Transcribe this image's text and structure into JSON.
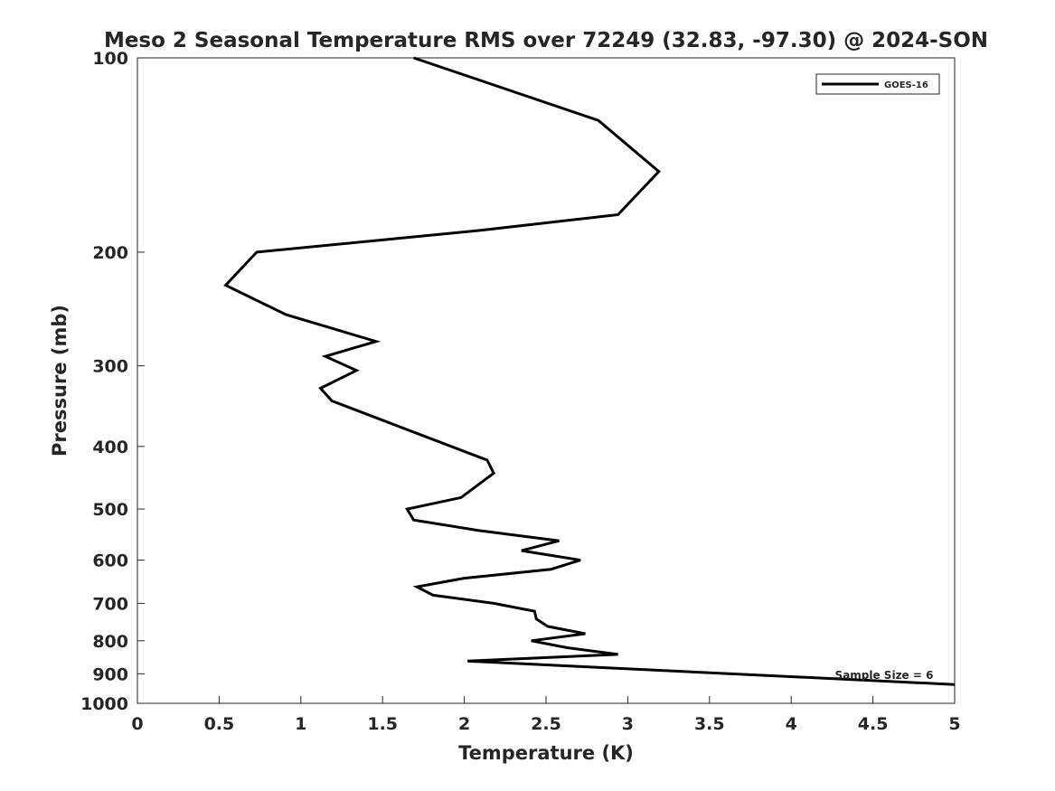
{
  "chart_data": {
    "type": "line",
    "title": "Meso 2 Seasonal Temperature RMS over 72249 (32.83, -97.30) @ 2024-SON",
    "xlabel": "Temperature (K)",
    "ylabel": "Pressure (mb)",
    "xlim": [
      0,
      5
    ],
    "ylim": [
      100,
      1000
    ],
    "y_scale": "log",
    "y_reversed": true,
    "x_ticks": [
      "0",
      "0.5",
      "1",
      "1.5",
      "2",
      "2.5",
      "3",
      "3.5",
      "4",
      "4.5",
      "5"
    ],
    "y_ticks": [
      "100",
      "200",
      "300",
      "400",
      "500",
      "600",
      "700",
      "800",
      "900",
      "1000"
    ],
    "grid": false,
    "legend_position": "top-right",
    "annotation": "Sample Size = 6",
    "series": [
      {
        "name": "GOES-16",
        "color": "#000000",
        "points": [
          {
            "x": 1.69,
            "p": 100
          },
          {
            "x": 2.82,
            "p": 125
          },
          {
            "x": 3.19,
            "p": 150
          },
          {
            "x": 2.94,
            "p": 175
          },
          {
            "x": 2.1,
            "p": 185
          },
          {
            "x": 0.73,
            "p": 200
          },
          {
            "x": 0.54,
            "p": 225
          },
          {
            "x": 0.91,
            "p": 250
          },
          {
            "x": 1.46,
            "p": 275
          },
          {
            "x": 1.15,
            "p": 290
          },
          {
            "x": 1.34,
            "p": 305
          },
          {
            "x": 1.12,
            "p": 325
          },
          {
            "x": 1.19,
            "p": 340
          },
          {
            "x": 2.14,
            "p": 420
          },
          {
            "x": 2.18,
            "p": 440
          },
          {
            "x": 1.98,
            "p": 480
          },
          {
            "x": 1.65,
            "p": 500
          },
          {
            "x": 1.69,
            "p": 520
          },
          {
            "x": 2.09,
            "p": 540
          },
          {
            "x": 2.58,
            "p": 560
          },
          {
            "x": 2.35,
            "p": 580
          },
          {
            "x": 2.71,
            "p": 600
          },
          {
            "x": 2.53,
            "p": 620
          },
          {
            "x": 2.0,
            "p": 640
          },
          {
            "x": 1.71,
            "p": 660
          },
          {
            "x": 1.81,
            "p": 680
          },
          {
            "x": 2.18,
            "p": 700
          },
          {
            "x": 2.43,
            "p": 720
          },
          {
            "x": 2.44,
            "p": 740
          },
          {
            "x": 2.51,
            "p": 760
          },
          {
            "x": 2.74,
            "p": 780
          },
          {
            "x": 2.41,
            "p": 800
          },
          {
            "x": 2.63,
            "p": 820
          },
          {
            "x": 2.94,
            "p": 840
          },
          {
            "x": 2.02,
            "p": 860
          },
          {
            "x": 2.63,
            "p": 875
          },
          {
            "x": 5.0,
            "p": 935
          }
        ]
      }
    ]
  }
}
